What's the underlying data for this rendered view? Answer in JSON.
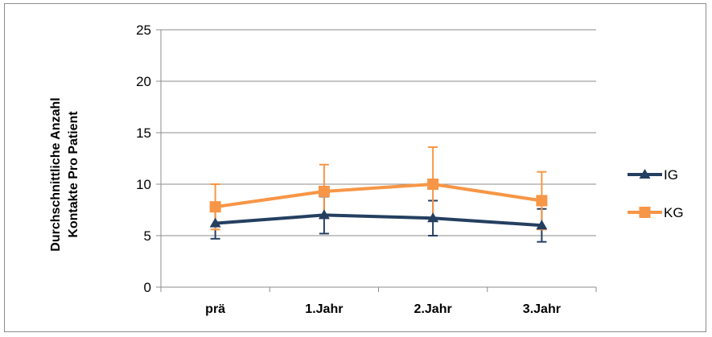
{
  "chart_data": {
    "type": "line",
    "categories": [
      "prä",
      "1.Jahr",
      "2.Jahr",
      "3.Jahr"
    ],
    "ylabel_lines": [
      "Durchschnittliche Anzahl",
      "Kontakte Pro Patient"
    ],
    "xlabel": "",
    "ylim": [
      0,
      25
    ],
    "yticks": [
      0,
      5,
      10,
      15,
      20,
      25
    ],
    "grid": true,
    "legend_position": "right",
    "series": [
      {
        "name": "IG",
        "color": "#243f60",
        "marker": "triangle",
        "values": [
          6.2,
          7.0,
          6.7,
          6.0
        ],
        "error_low": [
          4.7,
          5.2,
          5.0,
          4.4
        ],
        "error_high": [
          7.7,
          8.8,
          8.4,
          7.6
        ]
      },
      {
        "name": "KG",
        "color": "#f79646",
        "marker": "square",
        "values": [
          7.8,
          9.3,
          10.0,
          8.4
        ],
        "error_low": [
          5.6,
          6.7,
          6.5,
          5.6
        ],
        "error_high": [
          10.0,
          11.9,
          13.6,
          11.2
        ]
      }
    ]
  }
}
